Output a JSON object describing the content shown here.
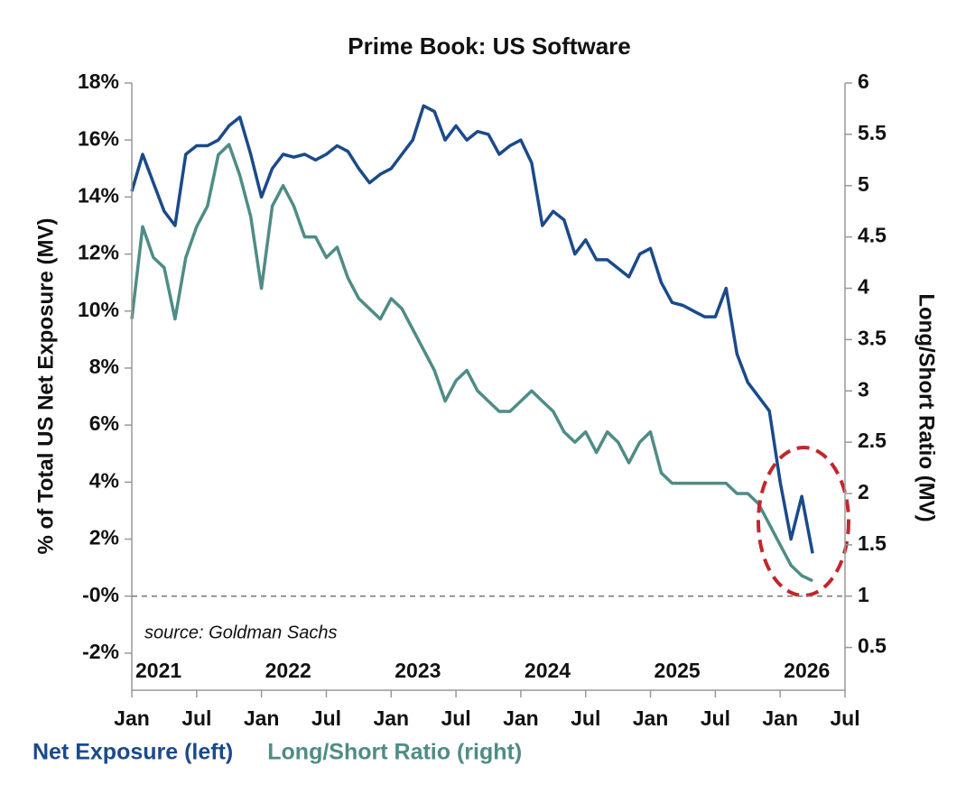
{
  "chart_data": {
    "type": "line",
    "title": "Prime Book: US Software",
    "ylabel": "% of Total US Net Exposure (MV)",
    "y2label": "Long/Short Ratio (MV)",
    "annotation": "source: Goldman Sachs",
    "x": [
      "2021-01",
      "2021-02",
      "2021-03",
      "2021-04",
      "2021-05",
      "2021-06",
      "2021-07",
      "2021-08",
      "2021-09",
      "2021-10",
      "2021-11",
      "2021-12",
      "2022-01",
      "2022-02",
      "2022-03",
      "2022-04",
      "2022-05",
      "2022-06",
      "2022-07",
      "2022-08",
      "2022-09",
      "2022-10",
      "2022-11",
      "2022-12",
      "2023-01",
      "2023-02",
      "2023-03",
      "2023-04",
      "2023-05",
      "2023-06",
      "2023-07",
      "2023-08",
      "2023-09",
      "2023-10",
      "2023-11",
      "2023-12",
      "2024-01",
      "2024-02",
      "2024-03",
      "2024-04",
      "2024-05",
      "2024-06",
      "2024-07",
      "2024-08",
      "2024-09",
      "2024-10",
      "2024-11",
      "2024-12",
      "2025-01",
      "2025-02",
      "2025-03",
      "2025-04",
      "2025-05",
      "2025-06",
      "2025-07",
      "2025-08",
      "2025-09",
      "2025-10",
      "2025-11",
      "2025-12",
      "2026-01",
      "2026-02",
      "2026-03",
      "2026-04"
    ],
    "series": [
      {
        "name": "Net Exposure (left)",
        "color": "#1b4a8a",
        "axis": "y",
        "values": [
          14.2,
          15.5,
          14.5,
          13.5,
          13.0,
          15.5,
          15.8,
          15.8,
          16.0,
          16.5,
          16.8,
          15.5,
          14.0,
          15.0,
          15.5,
          15.4,
          15.5,
          15.3,
          15.5,
          15.8,
          15.6,
          15.0,
          14.5,
          14.8,
          15.0,
          15.5,
          16.0,
          17.2,
          17.0,
          16.0,
          16.5,
          16.0,
          16.3,
          16.2,
          15.5,
          15.8,
          16.0,
          15.2,
          13.0,
          13.5,
          13.2,
          12.0,
          12.5,
          11.8,
          11.8,
          11.5,
          11.2,
          12.0,
          12.2,
          11.0,
          10.3,
          10.2,
          10.0,
          9.8,
          9.8,
          10.8,
          8.5,
          7.5,
          7.0,
          6.5,
          4.0,
          2.0,
          3.5,
          1.5
        ]
      },
      {
        "name": "Long/Short Ratio (right)",
        "color": "#4f8c86",
        "axis": "y2",
        "values": [
          3.7,
          4.6,
          4.3,
          4.2,
          3.7,
          4.3,
          4.6,
          4.8,
          5.3,
          5.4,
          5.1,
          4.7,
          4.0,
          4.8,
          5.0,
          4.8,
          4.5,
          4.5,
          4.3,
          4.4,
          4.1,
          3.9,
          3.8,
          3.7,
          3.9,
          3.8,
          3.6,
          3.4,
          3.2,
          2.9,
          3.1,
          3.2,
          3.0,
          2.9,
          2.8,
          2.8,
          2.9,
          3.0,
          2.9,
          2.8,
          2.6,
          2.5,
          2.6,
          2.4,
          2.6,
          2.5,
          2.3,
          2.5,
          2.6,
          2.2,
          2.1,
          2.1,
          2.1,
          2.1,
          2.1,
          2.1,
          2.0,
          2.0,
          1.9,
          1.7,
          1.5,
          1.3,
          1.2,
          1.15
        ]
      }
    ],
    "xlim": [
      "2021-01",
      "2026-07"
    ],
    "xticks": [
      {
        "value": "2021-01",
        "label": "Jan"
      },
      {
        "value": "2021-07",
        "label": "Jul"
      },
      {
        "value": "2022-01",
        "label": "Jan"
      },
      {
        "value": "2022-07",
        "label": "Jul"
      },
      {
        "value": "2023-01",
        "label": "Jan"
      },
      {
        "value": "2023-07",
        "label": "Jul"
      },
      {
        "value": "2024-01",
        "label": "Jan"
      },
      {
        "value": "2024-07",
        "label": "Jul"
      },
      {
        "value": "2025-01",
        "label": "Jan"
      },
      {
        "value": "2025-07",
        "label": "Jul"
      },
      {
        "value": "2026-01",
        "label": "Jan"
      },
      {
        "value": "2026-07",
        "label": "Jul"
      }
    ],
    "year_labels": [
      {
        "value": "2021-01",
        "label": "2021"
      },
      {
        "value": "2022-01",
        "label": "2022"
      },
      {
        "value": "2023-01",
        "label": "2023"
      },
      {
        "value": "2024-01",
        "label": "2024"
      },
      {
        "value": "2025-01",
        "label": "2025"
      },
      {
        "value": "2026-01",
        "label": "2026"
      }
    ],
    "ylim": [
      -3.3,
      18
    ],
    "yticks": [
      {
        "value": -2,
        "label": "-2%"
      },
      {
        "value": 0,
        "label": "-0%"
      },
      {
        "value": 2,
        "label": "2%"
      },
      {
        "value": 4,
        "label": "4%"
      },
      {
        "value": 6,
        "label": "6%"
      },
      {
        "value": 8,
        "label": "8%"
      },
      {
        "value": 10,
        "label": "10%"
      },
      {
        "value": 12,
        "label": "12%"
      },
      {
        "value": 14,
        "label": "14%"
      },
      {
        "value": 16,
        "label": "16%"
      },
      {
        "value": 18,
        "label": "18%"
      }
    ],
    "y2lim": [
      0.0833,
      6
    ],
    "y2ticks": [
      0.5,
      1,
      1.5,
      2,
      2.5,
      3,
      3.5,
      4,
      4.5,
      5,
      5.5,
      6
    ],
    "hline": 0,
    "legend": "bottom-left"
  }
}
